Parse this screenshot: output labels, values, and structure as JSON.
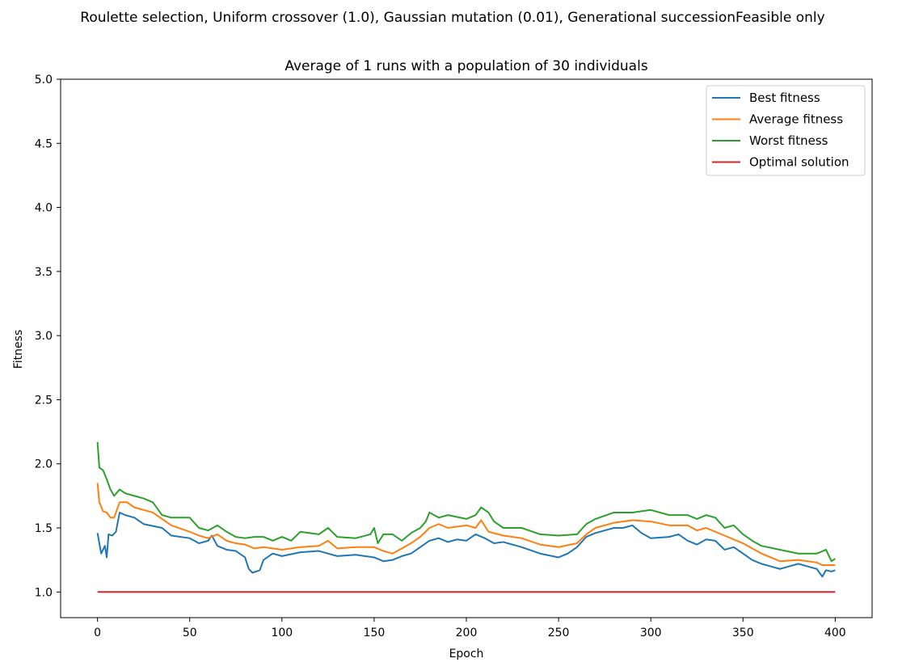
{
  "chart_data": {
    "type": "line",
    "suptitle": "Roulette selection, Uniform crossover (1.0), Gaussian mutation (0.01), Generational successionFeasible only",
    "title": "Average of 1 runs with a population of 30 individuals",
    "xlabel": "Epoch",
    "ylabel": "Fitness",
    "xlim": [
      -20,
      420
    ],
    "ylim": [
      0.8,
      5.0
    ],
    "xticks": [
      0,
      50,
      100,
      150,
      200,
      250,
      300,
      350,
      400
    ],
    "xtick_labels": [
      "0",
      "50",
      "100",
      "150",
      "200",
      "250",
      "300",
      "350",
      "400"
    ],
    "yticks": [
      1.0,
      1.5,
      2.0,
      2.5,
      3.0,
      3.5,
      4.0,
      4.5,
      5.0
    ],
    "ytick_labels": [
      "1.0",
      "1.5",
      "2.0",
      "2.5",
      "3.0",
      "3.5",
      "4.0",
      "4.5",
      "5.0"
    ],
    "grid": false,
    "legend_position": "top-right",
    "series": [
      {
        "name": "Best fitness",
        "color": "#1f77b4",
        "points": [
          [
            0,
            1.46
          ],
          [
            2,
            1.3
          ],
          [
            4,
            1.36
          ],
          [
            5,
            1.27
          ],
          [
            6,
            1.45
          ],
          [
            8,
            1.44
          ],
          [
            10,
            1.47
          ],
          [
            12,
            1.62
          ],
          [
            15,
            1.6
          ],
          [
            20,
            1.58
          ],
          [
            25,
            1.53
          ],
          [
            35,
            1.5
          ],
          [
            40,
            1.44
          ],
          [
            50,
            1.42
          ],
          [
            55,
            1.38
          ],
          [
            60,
            1.4
          ],
          [
            62,
            1.44
          ],
          [
            65,
            1.36
          ],
          [
            70,
            1.33
          ],
          [
            75,
            1.32
          ],
          [
            80,
            1.27
          ],
          [
            82,
            1.18
          ],
          [
            84,
            1.15
          ],
          [
            88,
            1.17
          ],
          [
            90,
            1.25
          ],
          [
            95,
            1.3
          ],
          [
            100,
            1.28
          ],
          [
            110,
            1.31
          ],
          [
            120,
            1.32
          ],
          [
            130,
            1.28
          ],
          [
            140,
            1.29
          ],
          [
            150,
            1.27
          ],
          [
            155,
            1.24
          ],
          [
            160,
            1.25
          ],
          [
            165,
            1.28
          ],
          [
            170,
            1.3
          ],
          [
            175,
            1.35
          ],
          [
            180,
            1.4
          ],
          [
            185,
            1.42
          ],
          [
            190,
            1.39
          ],
          [
            195,
            1.41
          ],
          [
            200,
            1.4
          ],
          [
            205,
            1.45
          ],
          [
            210,
            1.42
          ],
          [
            215,
            1.38
          ],
          [
            220,
            1.39
          ],
          [
            230,
            1.35
          ],
          [
            240,
            1.3
          ],
          [
            250,
            1.27
          ],
          [
            255,
            1.3
          ],
          [
            260,
            1.35
          ],
          [
            265,
            1.43
          ],
          [
            270,
            1.46
          ],
          [
            275,
            1.48
          ],
          [
            280,
            1.5
          ],
          [
            285,
            1.5
          ],
          [
            290,
            1.52
          ],
          [
            295,
            1.46
          ],
          [
            300,
            1.42
          ],
          [
            310,
            1.43
          ],
          [
            315,
            1.45
          ],
          [
            320,
            1.4
          ],
          [
            325,
            1.37
          ],
          [
            330,
            1.41
          ],
          [
            335,
            1.4
          ],
          [
            340,
            1.33
          ],
          [
            345,
            1.35
          ],
          [
            350,
            1.3
          ],
          [
            355,
            1.25
          ],
          [
            360,
            1.22
          ],
          [
            365,
            1.2
          ],
          [
            370,
            1.18
          ],
          [
            375,
            1.2
          ],
          [
            380,
            1.22
          ],
          [
            385,
            1.2
          ],
          [
            390,
            1.18
          ],
          [
            393,
            1.12
          ],
          [
            395,
            1.17
          ],
          [
            398,
            1.16
          ],
          [
            400,
            1.17
          ]
        ]
      },
      {
        "name": "Average fitness",
        "color": "#ff7f0e",
        "points": [
          [
            0,
            1.85
          ],
          [
            1,
            1.7
          ],
          [
            3,
            1.63
          ],
          [
            5,
            1.62
          ],
          [
            7,
            1.58
          ],
          [
            9,
            1.58
          ],
          [
            12,
            1.7
          ],
          [
            16,
            1.7
          ],
          [
            20,
            1.66
          ],
          [
            30,
            1.62
          ],
          [
            35,
            1.57
          ],
          [
            40,
            1.52
          ],
          [
            50,
            1.47
          ],
          [
            55,
            1.44
          ],
          [
            60,
            1.42
          ],
          [
            65,
            1.45
          ],
          [
            70,
            1.4
          ],
          [
            75,
            1.38
          ],
          [
            80,
            1.37
          ],
          [
            85,
            1.34
          ],
          [
            90,
            1.35
          ],
          [
            100,
            1.33
          ],
          [
            110,
            1.35
          ],
          [
            120,
            1.36
          ],
          [
            125,
            1.4
          ],
          [
            130,
            1.34
          ],
          [
            140,
            1.35
          ],
          [
            150,
            1.35
          ],
          [
            155,
            1.32
          ],
          [
            160,
            1.3
          ],
          [
            170,
            1.38
          ],
          [
            175,
            1.43
          ],
          [
            180,
            1.5
          ],
          [
            185,
            1.53
          ],
          [
            190,
            1.5
          ],
          [
            200,
            1.52
          ],
          [
            205,
            1.5
          ],
          [
            208,
            1.56
          ],
          [
            212,
            1.47
          ],
          [
            220,
            1.44
          ],
          [
            230,
            1.42
          ],
          [
            240,
            1.37
          ],
          [
            250,
            1.35
          ],
          [
            260,
            1.38
          ],
          [
            265,
            1.45
          ],
          [
            270,
            1.5
          ],
          [
            280,
            1.54
          ],
          [
            290,
            1.56
          ],
          [
            300,
            1.55
          ],
          [
            310,
            1.52
          ],
          [
            320,
            1.52
          ],
          [
            325,
            1.48
          ],
          [
            330,
            1.5
          ],
          [
            340,
            1.44
          ],
          [
            350,
            1.38
          ],
          [
            360,
            1.3
          ],
          [
            370,
            1.24
          ],
          [
            380,
            1.25
          ],
          [
            390,
            1.23
          ],
          [
            393,
            1.21
          ],
          [
            400,
            1.21
          ]
        ]
      },
      {
        "name": "Worst fitness",
        "color": "#2ca02c",
        "points": [
          [
            0,
            2.17
          ],
          [
            1,
            1.97
          ],
          [
            3,
            1.95
          ],
          [
            5,
            1.88
          ],
          [
            7,
            1.8
          ],
          [
            9,
            1.75
          ],
          [
            12,
            1.8
          ],
          [
            15,
            1.77
          ],
          [
            20,
            1.75
          ],
          [
            25,
            1.73
          ],
          [
            30,
            1.7
          ],
          [
            35,
            1.6
          ],
          [
            40,
            1.58
          ],
          [
            50,
            1.58
          ],
          [
            55,
            1.5
          ],
          [
            60,
            1.48
          ],
          [
            65,
            1.52
          ],
          [
            70,
            1.47
          ],
          [
            75,
            1.43
          ],
          [
            80,
            1.42
          ],
          [
            85,
            1.43
          ],
          [
            90,
            1.43
          ],
          [
            95,
            1.4
          ],
          [
            100,
            1.43
          ],
          [
            105,
            1.4
          ],
          [
            110,
            1.47
          ],
          [
            120,
            1.45
          ],
          [
            125,
            1.5
          ],
          [
            130,
            1.43
          ],
          [
            140,
            1.42
          ],
          [
            148,
            1.45
          ],
          [
            150,
            1.5
          ],
          [
            152,
            1.38
          ],
          [
            155,
            1.45
          ],
          [
            160,
            1.45
          ],
          [
            165,
            1.4
          ],
          [
            170,
            1.46
          ],
          [
            175,
            1.5
          ],
          [
            178,
            1.55
          ],
          [
            180,
            1.62
          ],
          [
            185,
            1.58
          ],
          [
            190,
            1.6
          ],
          [
            200,
            1.57
          ],
          [
            205,
            1.6
          ],
          [
            208,
            1.66
          ],
          [
            212,
            1.62
          ],
          [
            215,
            1.55
          ],
          [
            220,
            1.5
          ],
          [
            230,
            1.5
          ],
          [
            240,
            1.45
          ],
          [
            250,
            1.44
          ],
          [
            260,
            1.45
          ],
          [
            265,
            1.53
          ],
          [
            270,
            1.57
          ],
          [
            280,
            1.62
          ],
          [
            290,
            1.62
          ],
          [
            300,
            1.64
          ],
          [
            310,
            1.6
          ],
          [
            320,
            1.6
          ],
          [
            325,
            1.57
          ],
          [
            330,
            1.6
          ],
          [
            335,
            1.58
          ],
          [
            340,
            1.5
          ],
          [
            345,
            1.52
          ],
          [
            350,
            1.45
          ],
          [
            355,
            1.4
          ],
          [
            360,
            1.36
          ],
          [
            370,
            1.33
          ],
          [
            380,
            1.3
          ],
          [
            390,
            1.3
          ],
          [
            395,
            1.33
          ],
          [
            398,
            1.24
          ],
          [
            400,
            1.26
          ]
        ]
      },
      {
        "name": "Optimal solution",
        "color": "#d62728",
        "points": [
          [
            0,
            1.0
          ],
          [
            400,
            1.0
          ]
        ]
      }
    ]
  }
}
